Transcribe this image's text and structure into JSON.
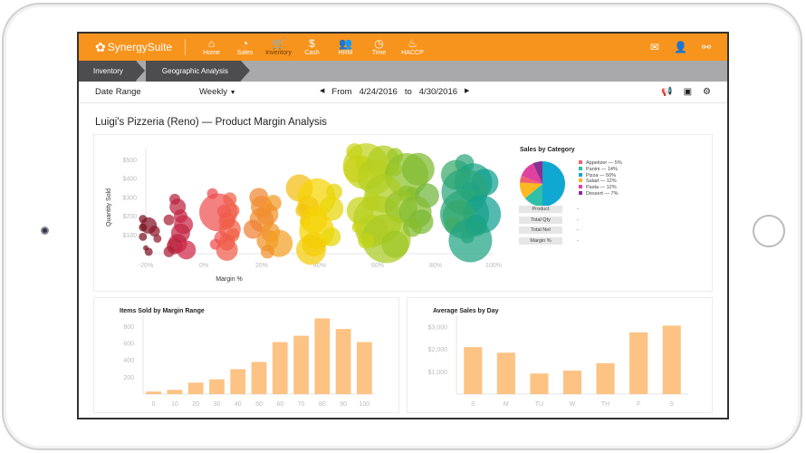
{
  "app": {
    "brand": "SynergySuite"
  },
  "nav": [
    {
      "icon": "home-icon",
      "glyph": "⌂",
      "label": "Home"
    },
    {
      "icon": "pie-chart-icon",
      "glyph": "◔",
      "label": "Sales"
    },
    {
      "icon": "cart-icon",
      "glyph": "🛒",
      "label": "Inventory",
      "active": true
    },
    {
      "icon": "dollar-icon",
      "glyph": "$",
      "label": "Cash"
    },
    {
      "icon": "people-icon",
      "glyph": "👥",
      "label": "HRM"
    },
    {
      "icon": "clock-icon",
      "glyph": "◷",
      "label": "Time"
    },
    {
      "icon": "flame-icon",
      "glyph": "♨",
      "label": "HACCP"
    }
  ],
  "header_icons": [
    {
      "icon": "mail-icon",
      "glyph": "✉"
    },
    {
      "icon": "user-icon",
      "glyph": "👤"
    },
    {
      "icon": "link-icon",
      "glyph": "⚯"
    }
  ],
  "breadcrumb": [
    "Inventory",
    "Geographic Analysis"
  ],
  "date_row": {
    "label": "Date Range",
    "period": "Weekly",
    "from_label": "From",
    "from": "4/24/2016",
    "to_label": "to",
    "to": "4/30/2016",
    "icons": [
      {
        "icon": "megaphone-icon",
        "glyph": "📢"
      },
      {
        "icon": "money-icon",
        "glyph": "▣"
      },
      {
        "icon": "settings-icon",
        "glyph": "⚙"
      }
    ]
  },
  "page_title": "Luigi's Pizzeria (Reno) — Product Margin Analysis",
  "details": [
    {
      "label": "Product",
      "value": "-"
    },
    {
      "label": "Total Qty",
      "value": "-"
    },
    {
      "label": "Total Net",
      "value": "-"
    },
    {
      "label": "Margin %",
      "value": "-"
    }
  ],
  "chart_data": [
    {
      "type": "scatter",
      "subtype": "bubble",
      "xlabel": "Margin %",
      "ylabel": "Quantity Sold",
      "xlim": [
        -20,
        100
      ],
      "ylim": [
        0,
        560
      ],
      "xticks": [
        "-20%",
        "0%",
        "20%",
        "40%",
        "60%",
        "80%",
        "100%"
      ],
      "xtick_values": [
        -20,
        0,
        20,
        40,
        60,
        80,
        100
      ],
      "yticks": [
        "$100",
        "$200",
        "$300",
        "$400",
        "$500"
      ],
      "ytick_values": [
        100,
        200,
        300,
        400,
        500
      ],
      "color_scale": [
        [
          -20,
          "#7a1020"
        ],
        [
          -5,
          "#d42a4a"
        ],
        [
          5,
          "#f05050"
        ],
        [
          20,
          "#f08a30"
        ],
        [
          40,
          "#f5d800"
        ],
        [
          60,
          "#b5d020"
        ],
        [
          75,
          "#7ab830"
        ],
        [
          95,
          "#10a090"
        ]
      ],
      "points": [
        [
          -21,
          185,
          3
        ],
        [
          -19,
          150,
          6
        ],
        [
          -21,
          90,
          3
        ],
        [
          -16,
          80,
          3
        ],
        [
          -20,
          30,
          2
        ],
        [
          -19,
          10,
          3
        ],
        [
          -21,
          140,
          3
        ],
        [
          -17,
          120,
          4
        ],
        [
          -10,
          290,
          4
        ],
        [
          -9,
          250,
          6
        ],
        [
          -12,
          180,
          4
        ],
        [
          -8,
          200,
          5
        ],
        [
          -7,
          155,
          7
        ],
        [
          -8,
          110,
          7
        ],
        [
          -9,
          55,
          7
        ],
        [
          -10,
          40,
          6
        ],
        [
          -6,
          20,
          7
        ],
        [
          -12,
          10,
          4
        ],
        [
          3,
          320,
          4
        ],
        [
          5,
          220,
          14
        ],
        [
          9,
          290,
          5
        ],
        [
          7,
          225,
          5
        ],
        [
          10,
          230,
          5
        ],
        [
          8,
          175,
          6
        ],
        [
          9,
          130,
          8
        ],
        [
          6,
          85,
          5
        ],
        [
          10,
          100,
          5
        ],
        [
          4,
          50,
          4
        ],
        [
          8,
          60,
          6
        ],
        [
          8,
          20,
          8
        ],
        [
          19,
          300,
          7
        ],
        [
          20,
          250,
          8
        ],
        [
          24,
          270,
          6
        ],
        [
          22,
          210,
          8
        ],
        [
          20,
          180,
          9
        ],
        [
          17,
          130,
          7
        ],
        [
          23,
          115,
          7
        ],
        [
          22,
          70,
          8
        ],
        [
          26,
          55,
          10
        ],
        [
          22,
          10,
          5
        ],
        [
          33,
          350,
          10
        ],
        [
          39,
          300,
          14
        ],
        [
          45,
          330,
          6
        ],
        [
          36,
          250,
          8
        ],
        [
          44,
          240,
          9
        ],
        [
          34,
          230,
          5
        ],
        [
          38,
          180,
          10
        ],
        [
          35,
          170,
          4
        ],
        [
          39,
          120,
          13
        ],
        [
          44,
          90,
          7
        ],
        [
          38,
          50,
          9
        ],
        [
          37,
          20,
          11
        ],
        [
          52,
          545,
          6
        ],
        [
          56,
          465,
          17
        ],
        [
          53,
          450,
          10
        ],
        [
          55,
          480,
          6
        ],
        [
          62,
          490,
          12
        ],
        [
          59,
          410,
          13
        ],
        [
          66,
          520,
          6
        ],
        [
          70,
          420,
          16
        ],
        [
          66,
          450,
          5
        ],
        [
          74,
          450,
          12
        ],
        [
          62,
          320,
          14
        ],
        [
          70,
          320,
          6
        ],
        [
          72,
          320,
          5
        ],
        [
          77,
          310,
          9
        ],
        [
          58,
          280,
          7
        ],
        [
          54,
          230,
          10
        ],
        [
          60,
          180,
          18
        ],
        [
          68,
          250,
          12
        ],
        [
          73,
          220,
          12
        ],
        [
          75,
          170,
          9
        ],
        [
          58,
          120,
          12
        ],
        [
          63,
          80,
          18
        ],
        [
          66,
          50,
          10
        ],
        [
          56,
          70,
          6
        ],
        [
          53,
          140,
          4
        ],
        [
          72,
          140,
          7
        ],
        [
          87,
          420,
          11
        ],
        [
          90,
          480,
          7
        ],
        [
          93,
          380,
          14
        ],
        [
          97,
          380,
          10
        ],
        [
          90,
          330,
          17
        ],
        [
          92,
          330,
          7
        ],
        [
          90,
          210,
          18
        ],
        [
          96,
          210,
          14
        ],
        [
          88,
          200,
          12
        ],
        [
          86,
          150,
          6
        ],
        [
          94,
          150,
          8
        ],
        [
          92,
          70,
          16
        ],
        [
          91,
          90,
          5
        ]
      ]
    },
    {
      "type": "pie",
      "title": "Sales by Category",
      "slices": [
        {
          "name": "Pizza",
          "value": 50,
          "label": "Pizza — 50%",
          "color": "#10a8d0"
        },
        {
          "name": "Panini",
          "value": 14,
          "label": "Panini — 14%",
          "color": "#30bfa8"
        },
        {
          "name": "Salad",
          "value": 12,
          "label": "Salad — 12%",
          "color": "#fbb820"
        },
        {
          "name": "Appetizer",
          "value": 5,
          "label": "Appetizer — 5%",
          "color": "#f06070"
        },
        {
          "name": "Pasta",
          "value": 12,
          "label": "Pasta — 12%",
          "color": "#e040a0"
        },
        {
          "name": "Dessert",
          "value": 7,
          "label": "Dessert — 7%",
          "color": "#8a3090"
        }
      ],
      "legend_order": [
        "Appetizer",
        "Panini",
        "Pizza",
        "Salad",
        "Pasta",
        "Dessert"
      ],
      "legend": "right"
    },
    {
      "type": "bar",
      "title": "Items Sold by Margin Range",
      "categories": [
        "0",
        "10",
        "20",
        "30",
        "40",
        "50",
        "60",
        "70",
        "80",
        "90",
        "100"
      ],
      "values": [
        30,
        50,
        135,
        175,
        295,
        380,
        615,
        690,
        895,
        770,
        615
      ],
      "ylim": [
        0,
        900
      ],
      "yticks": [
        "200",
        "400",
        "600",
        "800"
      ],
      "ytick_values": [
        200,
        400,
        600,
        800
      ],
      "color": "#fcc384"
    },
    {
      "type": "bar",
      "title": "Average Sales by Day",
      "categories": [
        "S",
        "M",
        "TU",
        "W",
        "TH",
        "F",
        "S"
      ],
      "values": [
        2100,
        1850,
        920,
        1050,
        1380,
        2760,
        3060
      ],
      "ylim": [
        0,
        3400
      ],
      "yticks": [
        "$1,000",
        "$2,000",
        "$3,000"
      ],
      "ytick_values": [
        1000,
        2000,
        3000
      ],
      "color": "#fcc384"
    }
  ]
}
